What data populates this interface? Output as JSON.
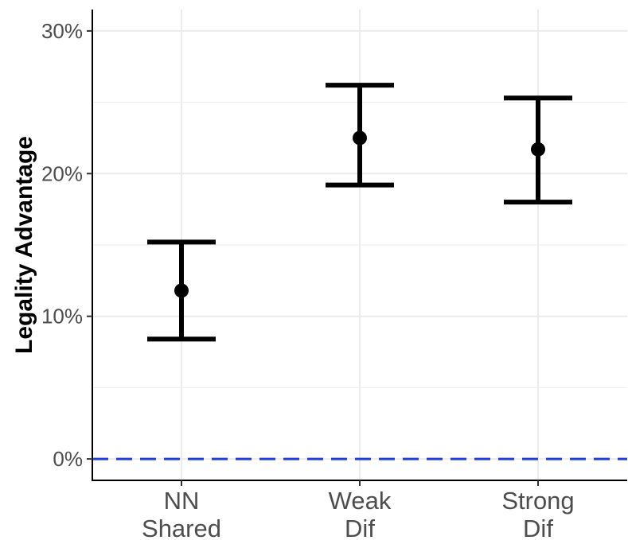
{
  "chart_data": {
    "type": "errorbar",
    "title": "",
    "xlabel": "",
    "ylabel": "Legality Advantage",
    "categories": [
      [
        "NN",
        "Shared"
      ],
      [
        "Weak",
        "Dif"
      ],
      [
        "Strong",
        "Dif"
      ]
    ],
    "series": [
      {
        "values": [
          11.8,
          22.5,
          21.7
        ],
        "lower": [
          8.4,
          19.2,
          18.0
        ],
        "upper": [
          15.2,
          26.2,
          25.3
        ]
      }
    ],
    "ylim": [
      -1.5,
      31.5
    ],
    "y_ticks": [
      0,
      10,
      20,
      30
    ],
    "y_tick_labels": [
      "0%",
      "10%",
      "20%",
      "30%"
    ],
    "reference_line": {
      "y": 0,
      "color": "#1f3fd6",
      "style": "dashed"
    },
    "grid": true,
    "colors": {
      "marks": "#000000",
      "grid": "#ebebeb",
      "reference": "#1f3fd6"
    }
  }
}
